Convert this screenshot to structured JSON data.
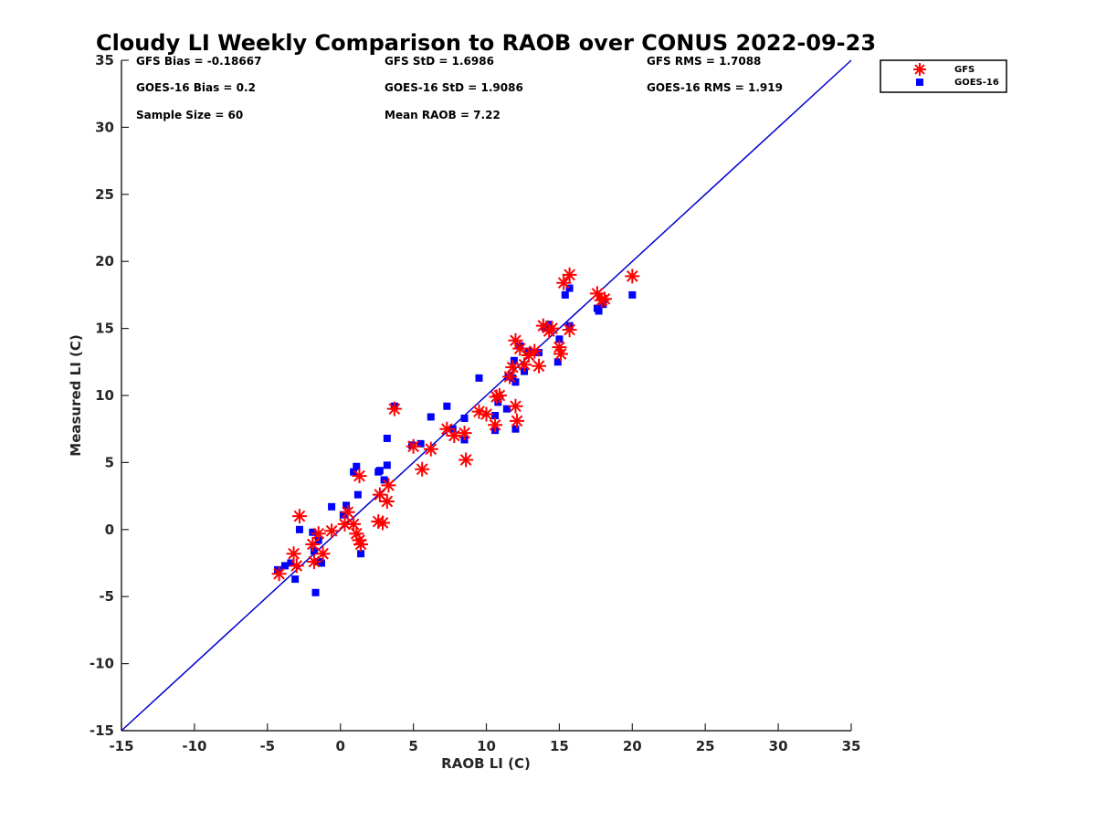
{
  "chart_data": {
    "type": "scatter",
    "title": "Cloudy LI Weekly Comparison to RAOB over CONUS 2022-09-23",
    "xlabel": "RAOB LI (C)",
    "ylabel": "Measured LI (C)",
    "xlim": [
      -15,
      35
    ],
    "ylim": [
      -15,
      35
    ],
    "xticks": [
      "-15",
      "-10",
      "-5",
      "0",
      "5",
      "10",
      "15",
      "20",
      "25",
      "30",
      "35"
    ],
    "yticks": [
      "-15",
      "-10",
      "-5",
      "0",
      "5",
      "10",
      "15",
      "20",
      "25",
      "30",
      "35"
    ],
    "reference_line": {
      "x": [
        -15,
        35
      ],
      "y": [
        -15,
        35
      ],
      "color": "#0000cc"
    },
    "legend": {
      "placement": "top-right",
      "entries": [
        "GFS",
        "GOES-16"
      ]
    },
    "stats": {
      "gfs_bias": "GFS Bias = -0.18667",
      "goes_bias": "GOES-16 Bias = 0.2",
      "sample_size": "Sample Size = 60",
      "gfs_std": "GFS StD = 1.6986",
      "goes_std": "GOES-16 StD = 1.9086",
      "mean_raob": "Mean RAOB = 7.22",
      "gfs_rms": "GFS RMS = 1.7088",
      "goes_rms": "GOES-16 RMS = 1.919"
    },
    "series": [
      {
        "name": "GFS",
        "marker": "asterisk",
        "color": "#ff0000",
        "points": [
          [
            -4.2,
            -3.3
          ],
          [
            -3.2,
            -1.8
          ],
          [
            -3.0,
            -2.7
          ],
          [
            -2.8,
            1.0
          ],
          [
            -1.9,
            -1.1
          ],
          [
            -1.8,
            -2.4
          ],
          [
            -1.5,
            -0.3
          ],
          [
            -1.2,
            -1.8
          ],
          [
            -0.6,
            -0.1
          ],
          [
            0.3,
            0.4
          ],
          [
            0.5,
            1.3
          ],
          [
            0.9,
            0.4
          ],
          [
            1.1,
            -0.3
          ],
          [
            1.3,
            -0.8
          ],
          [
            1.4,
            -1.1
          ],
          [
            1.3,
            4.0
          ],
          [
            2.6,
            0.6
          ],
          [
            2.7,
            2.6
          ],
          [
            2.9,
            0.5
          ],
          [
            3.2,
            2.1
          ],
          [
            3.3,
            3.3
          ],
          [
            3.7,
            9.0
          ],
          [
            5.0,
            6.2
          ],
          [
            5.6,
            4.5
          ],
          [
            6.2,
            6.0
          ],
          [
            7.3,
            7.5
          ],
          [
            7.8,
            7.0
          ],
          [
            8.5,
            7.2
          ],
          [
            8.6,
            5.2
          ],
          [
            9.5,
            8.8
          ],
          [
            10.0,
            8.6
          ],
          [
            10.6,
            7.8
          ],
          [
            10.7,
            9.9
          ],
          [
            10.9,
            10.0
          ],
          [
            11.6,
            11.4
          ],
          [
            11.8,
            12.1
          ],
          [
            12.0,
            14.1
          ],
          [
            12.0,
            9.2
          ],
          [
            12.1,
            8.1
          ],
          [
            12.3,
            13.5
          ],
          [
            12.6,
            12.3
          ],
          [
            12.9,
            13.0
          ],
          [
            13.3,
            13.3
          ],
          [
            13.6,
            12.2
          ],
          [
            13.9,
            15.2
          ],
          [
            14.3,
            14.8
          ],
          [
            14.5,
            15.0
          ],
          [
            15.0,
            13.6
          ],
          [
            15.1,
            13.1
          ],
          [
            15.3,
            18.4
          ],
          [
            15.7,
            19.0
          ],
          [
            15.7,
            14.9
          ],
          [
            17.6,
            17.6
          ],
          [
            17.9,
            17.1
          ],
          [
            18.1,
            17.2
          ],
          [
            20.0,
            18.9
          ]
        ]
      },
      {
        "name": "GOES-16",
        "marker": "square",
        "color": "#0000ff",
        "points": [
          [
            -4.3,
            -3.0
          ],
          [
            -3.8,
            -2.7
          ],
          [
            -3.4,
            -2.5
          ],
          [
            -3.1,
            -3.7
          ],
          [
            -2.8,
            0.0
          ],
          [
            -1.9,
            -0.2
          ],
          [
            -1.8,
            -1.6
          ],
          [
            -1.7,
            -4.7
          ],
          [
            -1.5,
            -2.4
          ],
          [
            -1.5,
            -0.8
          ],
          [
            -1.3,
            -2.5
          ],
          [
            -0.6,
            1.7
          ],
          [
            0.2,
            1.1
          ],
          [
            0.4,
            1.8
          ],
          [
            0.9,
            4.3
          ],
          [
            1.1,
            4.7
          ],
          [
            1.2,
            2.6
          ],
          [
            1.4,
            -1.8
          ],
          [
            2.6,
            4.3
          ],
          [
            2.7,
            4.4
          ],
          [
            3.0,
            3.7
          ],
          [
            3.2,
            6.8
          ],
          [
            3.2,
            4.8
          ],
          [
            3.7,
            9.2
          ],
          [
            4.9,
            6.3
          ],
          [
            5.5,
            6.4
          ],
          [
            6.2,
            8.4
          ],
          [
            7.3,
            9.2
          ],
          [
            7.7,
            7.5
          ],
          [
            8.5,
            8.3
          ],
          [
            8.5,
            6.7
          ],
          [
            9.5,
            11.3
          ],
          [
            10.6,
            8.5
          ],
          [
            10.6,
            7.4
          ],
          [
            10.8,
            9.5
          ],
          [
            11.4,
            9.0
          ],
          [
            11.5,
            11.4
          ],
          [
            11.8,
            11.3
          ],
          [
            11.9,
            12.6
          ],
          [
            12.0,
            7.5
          ],
          [
            12.0,
            11.0
          ],
          [
            12.3,
            13.7
          ],
          [
            12.6,
            11.8
          ],
          [
            12.9,
            13.3
          ],
          [
            13.6,
            13.2
          ],
          [
            14.0,
            15.1
          ],
          [
            14.3,
            15.3
          ],
          [
            14.9,
            12.5
          ],
          [
            15.0,
            14.2
          ],
          [
            15.4,
            17.5
          ],
          [
            15.7,
            18.0
          ],
          [
            15.7,
            15.2
          ],
          [
            17.6,
            16.5
          ],
          [
            17.7,
            16.3
          ],
          [
            18.0,
            16.8
          ],
          [
            20.0,
            17.5
          ]
        ]
      }
    ]
  }
}
